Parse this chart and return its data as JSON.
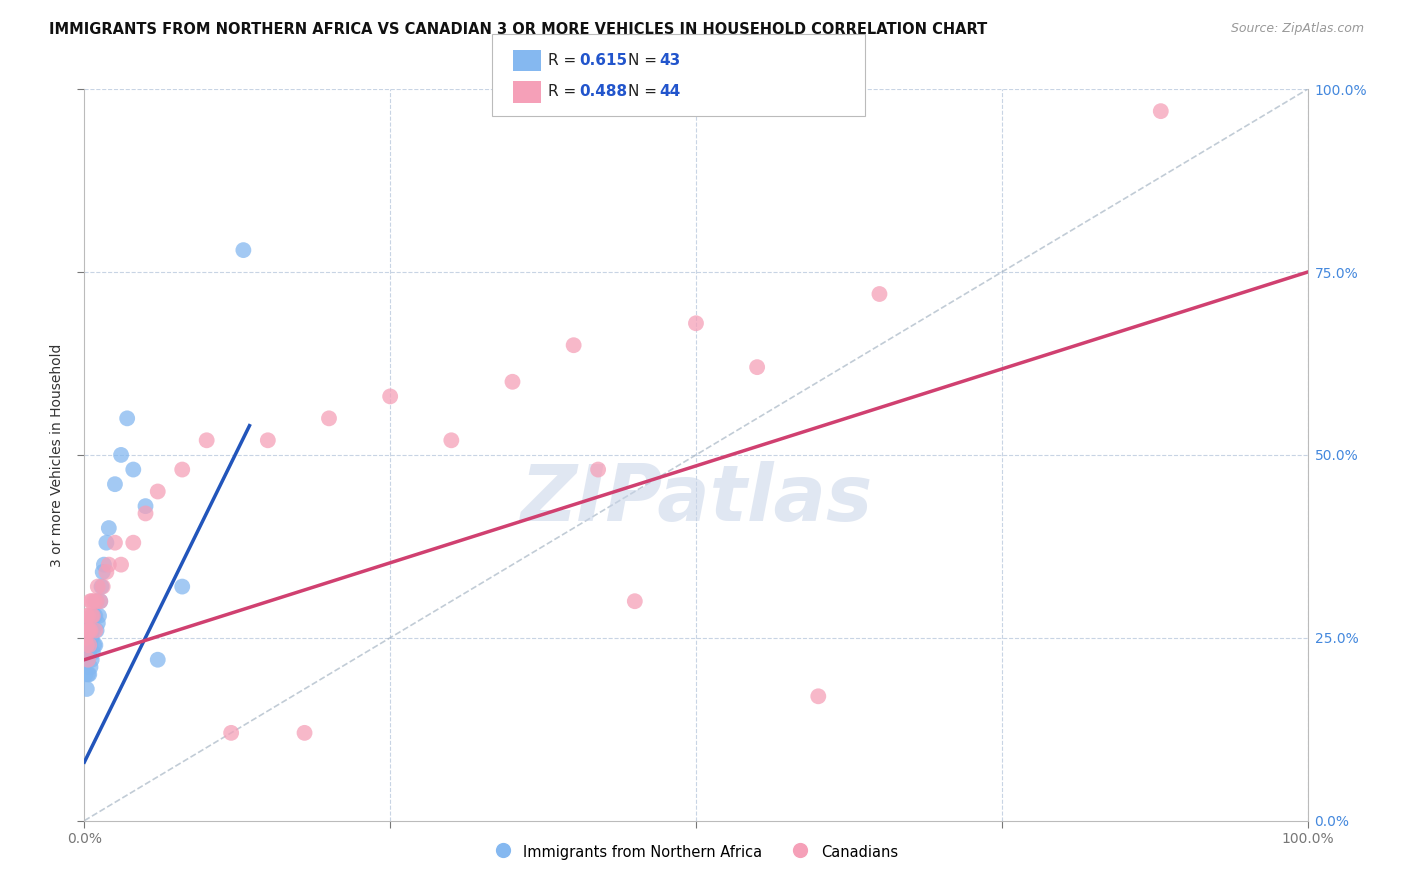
{
  "title": "IMMIGRANTS FROM NORTHERN AFRICA VS CANADIAN 3 OR MORE VEHICLES IN HOUSEHOLD CORRELATION CHART",
  "source": "Source: ZipAtlas.com",
  "ylabel": "3 or more Vehicles in Household",
  "legend_blue_R": "0.615",
  "legend_blue_N": "43",
  "legend_pink_R": "0.488",
  "legend_pink_N": "44",
  "watermark": "ZIPatlas",
  "blue_color": "#85b8f0",
  "pink_color": "#f5a0b8",
  "blue_line_color": "#2255bb",
  "pink_line_color": "#d04070",
  "diag_line_color": "#99aabb",
  "background_color": "#ffffff",
  "grid_color": "#c8d4e4",
  "right_tick_color": "#4488dd",
  "blue_scatter_x": [
    0.001,
    0.001,
    0.001,
    0.002,
    0.002,
    0.002,
    0.002,
    0.003,
    0.003,
    0.003,
    0.003,
    0.004,
    0.004,
    0.004,
    0.005,
    0.005,
    0.005,
    0.006,
    0.006,
    0.007,
    0.007,
    0.008,
    0.008,
    0.009,
    0.009,
    0.01,
    0.01,
    0.011,
    0.012,
    0.013,
    0.014,
    0.015,
    0.016,
    0.018,
    0.02,
    0.025,
    0.03,
    0.035,
    0.04,
    0.05,
    0.06,
    0.08,
    0.13
  ],
  "blue_scatter_y": [
    0.2,
    0.22,
    0.24,
    0.18,
    0.22,
    0.24,
    0.26,
    0.2,
    0.22,
    0.24,
    0.26,
    0.2,
    0.23,
    0.26,
    0.21,
    0.24,
    0.27,
    0.22,
    0.25,
    0.23,
    0.26,
    0.24,
    0.28,
    0.24,
    0.28,
    0.26,
    0.3,
    0.27,
    0.28,
    0.3,
    0.32,
    0.34,
    0.35,
    0.38,
    0.4,
    0.46,
    0.5,
    0.55,
    0.48,
    0.43,
    0.22,
    0.32,
    0.78
  ],
  "pink_scatter_x": [
    0.001,
    0.001,
    0.002,
    0.002,
    0.003,
    0.003,
    0.003,
    0.004,
    0.004,
    0.005,
    0.005,
    0.006,
    0.006,
    0.007,
    0.008,
    0.009,
    0.01,
    0.011,
    0.013,
    0.015,
    0.018,
    0.02,
    0.025,
    0.03,
    0.04,
    0.05,
    0.06,
    0.08,
    0.1,
    0.12,
    0.15,
    0.18,
    0.2,
    0.25,
    0.3,
    0.35,
    0.4,
    0.42,
    0.45,
    0.5,
    0.55,
    0.6,
    0.65,
    0.88
  ],
  "pink_scatter_y": [
    0.25,
    0.27,
    0.24,
    0.28,
    0.22,
    0.26,
    0.28,
    0.24,
    0.26,
    0.26,
    0.3,
    0.28,
    0.3,
    0.28,
    0.3,
    0.26,
    0.3,
    0.32,
    0.3,
    0.32,
    0.34,
    0.35,
    0.38,
    0.35,
    0.38,
    0.42,
    0.45,
    0.48,
    0.52,
    0.12,
    0.52,
    0.12,
    0.55,
    0.58,
    0.52,
    0.6,
    0.65,
    0.48,
    0.3,
    0.68,
    0.62,
    0.17,
    0.72,
    0.97
  ],
  "blue_line_x": [
    0.0,
    0.135
  ],
  "blue_line_y_start": 0.08,
  "blue_line_y_end": 0.54,
  "pink_line_x": [
    0.0,
    1.0
  ],
  "pink_line_y_start": 0.22,
  "pink_line_y_end": 0.75,
  "xlim": [
    0.0,
    1.0
  ],
  "ylim": [
    0.0,
    1.0
  ]
}
